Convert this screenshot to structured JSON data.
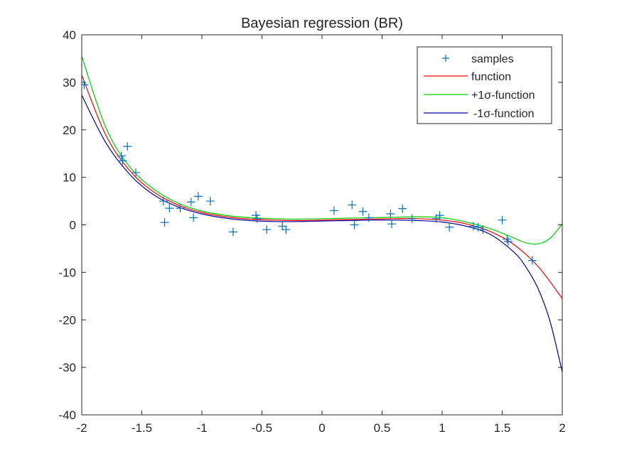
{
  "chart_data": {
    "type": "line",
    "title": "Bayesian regression (BR)",
    "xlabel": "",
    "ylabel": "",
    "xlim": [
      -2,
      2
    ],
    "ylim": [
      -40,
      40
    ],
    "xticks": [
      -2,
      -1.5,
      -1,
      -0.5,
      0,
      0.5,
      1,
      1.5,
      2
    ],
    "xtick_labels": [
      "-2",
      "-1.5",
      "-1",
      "-0.5",
      "0",
      "0.5",
      "1",
      "1.5",
      "2"
    ],
    "yticks": [
      -40,
      -30,
      -20,
      -10,
      0,
      10,
      20,
      30,
      40
    ],
    "ytick_labels": [
      "-40",
      "-30",
      "-20",
      "-10",
      "0",
      "10",
      "20",
      "30",
      "40"
    ],
    "grid": false,
    "legend_position": "top-right",
    "legend": [
      {
        "label": "samples",
        "style": "marker"
      },
      {
        "label": "function",
        "style": "line"
      },
      {
        "label": "+1σ-function",
        "style": "line"
      },
      {
        "label": "-1σ-function",
        "style": "line"
      }
    ],
    "series": [
      {
        "name": "samples",
        "kind": "scatter",
        "marker": "plus",
        "color": "#0072BD",
        "x": [
          -1.98,
          -1.67,
          -1.66,
          -1.62,
          -1.55,
          -1.32,
          -1.31,
          -1.27,
          -1.18,
          -1.09,
          -1.07,
          -1.03,
          -0.93,
          -0.74,
          -0.55,
          -0.54,
          -0.46,
          -0.33,
          -0.3,
          0.1,
          0.25,
          0.27,
          0.34,
          0.39,
          0.57,
          0.58,
          0.67,
          0.75,
          0.95,
          0.98,
          1.06,
          1.26,
          1.3,
          1.34,
          1.5,
          1.54,
          1.55,
          1.75
        ],
        "y": [
          29.5,
          14.5,
          13.5,
          16.5,
          11.0,
          5.0,
          0.5,
          3.5,
          3.5,
          4.8,
          1.5,
          6.0,
          5.0,
          -1.5,
          2.0,
          1.3,
          -1.0,
          -0.3,
          -1.0,
          3.0,
          4.2,
          0.0,
          2.8,
          1.5,
          2.3,
          0.2,
          3.4,
          1.3,
          1.3,
          2.0,
          -0.5,
          -0.3,
          -0.5,
          -1.0,
          1.0,
          -3.0,
          -3.5,
          -7.5
        ]
      },
      {
        "name": "function",
        "kind": "line",
        "color": "#FF0000",
        "x": [
          -2.0,
          -1.8,
          -1.6,
          -1.4,
          -1.2,
          -1.0,
          -0.8,
          -0.6,
          -0.4,
          -0.2,
          0.0,
          0.2,
          0.4,
          0.6,
          0.8,
          1.0,
          1.2,
          1.4,
          1.6,
          1.8,
          2.0
        ],
        "y": [
          31.5,
          18.9,
          11.4,
          6.9,
          4.2,
          2.6,
          1.7,
          1.2,
          1.0,
          0.9,
          1.0,
          1.1,
          1.2,
          1.3,
          1.3,
          1.0,
          0.2,
          -1.4,
          -4.2,
          -8.8,
          -15.5
        ]
      },
      {
        "name": "+1σ-function",
        "kind": "line",
        "color": "#00D000",
        "x": [
          -2.0,
          -1.8,
          -1.6,
          -1.4,
          -1.2,
          -1.0,
          -0.8,
          -0.6,
          -0.4,
          -0.2,
          0.0,
          0.2,
          0.4,
          0.6,
          0.8,
          1.0,
          1.2,
          1.4,
          1.6,
          1.7,
          1.8,
          1.9,
          2.0
        ],
        "y": [
          35.5,
          20.5,
          12.2,
          7.5,
          4.6,
          2.9,
          2.0,
          1.5,
          1.3,
          1.2,
          1.3,
          1.4,
          1.5,
          1.6,
          1.7,
          1.5,
          0.6,
          -0.8,
          -2.8,
          -3.8,
          -4.0,
          -2.8,
          0.2
        ]
      },
      {
        "name": "-1σ-function",
        "kind": "line",
        "color": "#0000A0",
        "x": [
          -2.0,
          -1.8,
          -1.6,
          -1.4,
          -1.2,
          -1.0,
          -0.8,
          -0.6,
          -0.4,
          -0.2,
          0.0,
          0.2,
          0.4,
          0.6,
          0.8,
          1.0,
          1.2,
          1.4,
          1.6,
          1.7,
          1.8,
          1.9,
          2.0
        ],
        "y": [
          27.3,
          17.3,
          10.6,
          6.3,
          3.8,
          2.3,
          1.4,
          0.9,
          0.7,
          0.7,
          0.8,
          0.9,
          1.0,
          1.0,
          0.9,
          0.6,
          -0.3,
          -2.0,
          -5.8,
          -9.0,
          -13.5,
          -20.5,
          -31.0
        ]
      }
    ]
  }
}
